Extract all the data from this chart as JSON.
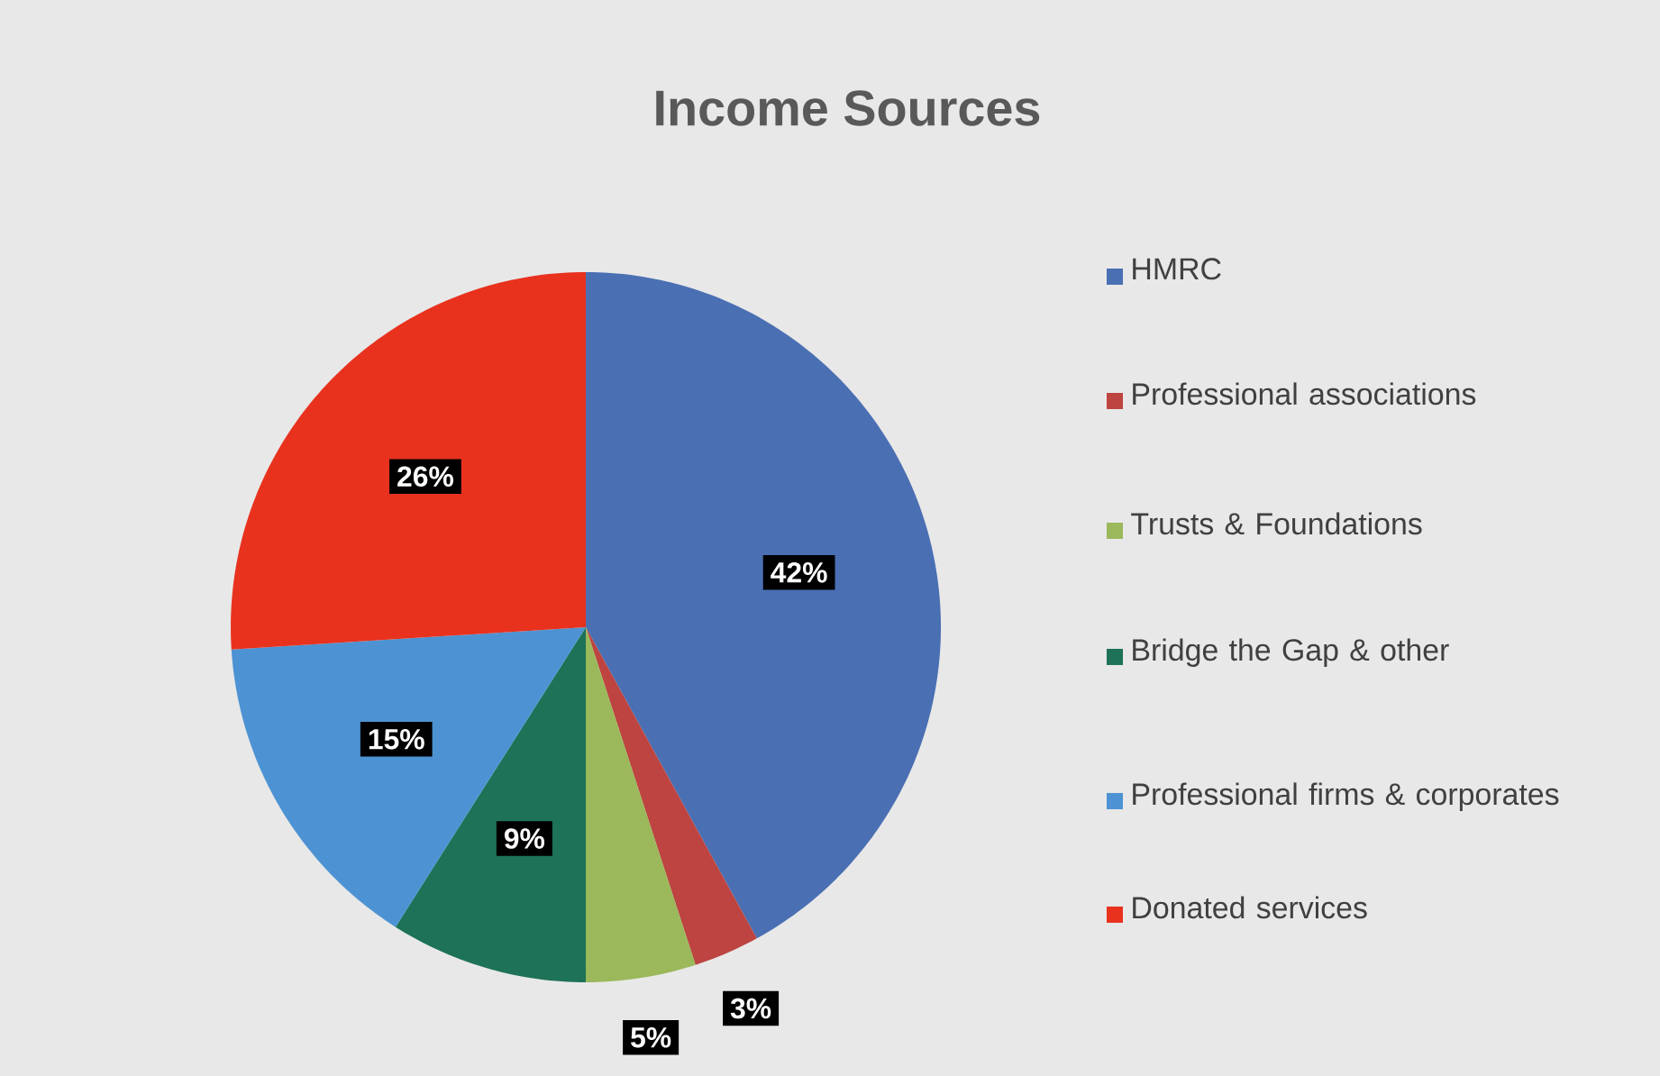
{
  "chart_data": {
    "type": "pie",
    "title": "Income Sources",
    "categories": [
      "HMRC",
      "Professional associations",
      "Trusts & Foundations",
      "Bridge the Gap & other",
      "Professional firms & corporates",
      "Donated services"
    ],
    "values": [
      42,
      3,
      5,
      9,
      15,
      26
    ],
    "value_labels": [
      "42%",
      "3%",
      "5%",
      "9%",
      "15%",
      "26%"
    ],
    "colors": [
      "#4a6fb3",
      "#bd4440",
      "#9bb85a",
      "#1d7258",
      "#4d93d3",
      "#e8321e"
    ],
    "legend": "right"
  }
}
